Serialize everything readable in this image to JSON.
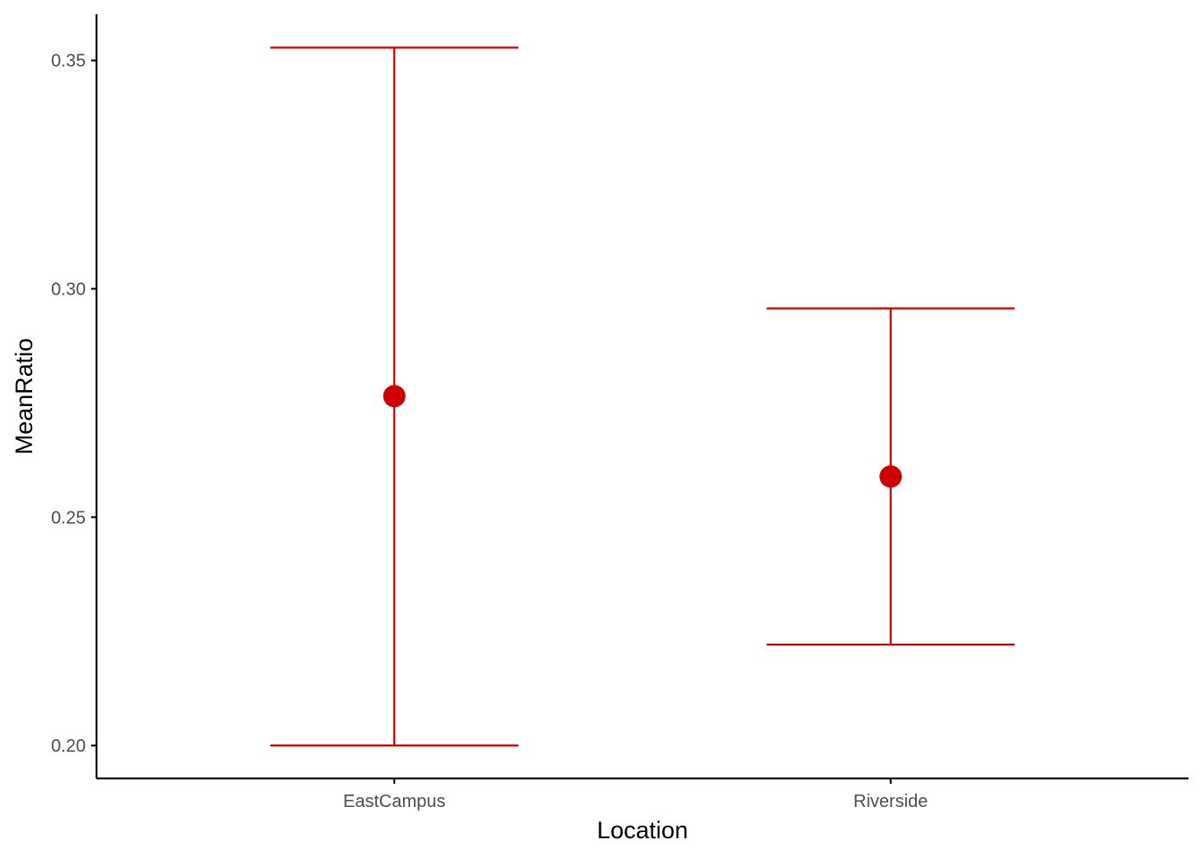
{
  "chart_data": {
    "type": "scatter",
    "title": "",
    "xlabel": "Location",
    "ylabel": "MeanRatio",
    "categories": [
      "EastCampus",
      "Riverside"
    ],
    "series": [
      {
        "values": [
          0.2765,
          0.2589
        ],
        "error_low": [
          0.2,
          0.2221
        ],
        "error_high": [
          0.3528,
          0.2957
        ]
      }
    ],
    "ylim": [
      0.1928,
      0.3601
    ],
    "yticks": [
      0.2,
      0.25,
      0.3,
      0.35
    ],
    "ytick_labels": [
      "0.20",
      "0.25",
      "0.30",
      "0.35"
    ],
    "grid": false,
    "legend": "none",
    "colors": {
      "points": "#CC0000",
      "axis": "#000000",
      "tick_text": "#4D4D4D"
    }
  }
}
